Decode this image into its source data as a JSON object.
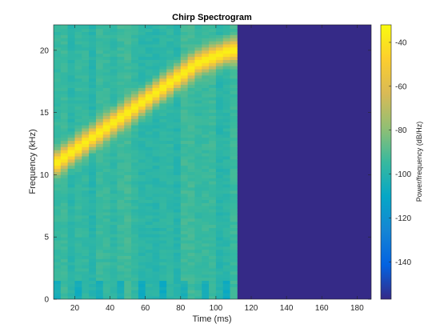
{
  "chart_data": {
    "type": "heatmap",
    "title": "Chirp Spectrogram",
    "xlabel": "Time (ms)",
    "ylabel": "Frequency (kHz)",
    "colorbar_label": "Power/frequency (dB/Hz)",
    "xlim": [
      8,
      188
    ],
    "ylim": [
      0,
      22.05
    ],
    "clim": [
      -157,
      -32
    ],
    "colormap": "parula",
    "x_ticks": [
      20,
      40,
      60,
      80,
      100,
      120,
      140,
      160,
      180
    ],
    "x_tick_labels": [
      "20",
      "40",
      "60",
      "80",
      "100",
      "120",
      "140",
      "160",
      "180"
    ],
    "y_ticks": [
      0,
      5,
      10,
      15,
      20
    ],
    "y_tick_labels": [
      "0",
      "5",
      "10",
      "15",
      "20"
    ],
    "colorbar_ticks": [
      -140,
      -120,
      -100,
      -80,
      -60,
      -40
    ],
    "colorbar_tick_labels": [
      "-140",
      "-120",
      "-100",
      "-80",
      "-60",
      "-40"
    ],
    "signal_end_ms": 112,
    "chirp_ridge": {
      "time_ms": [
        10,
        30,
        50,
        70,
        90,
        108
      ],
      "frequency_khz": [
        11.0,
        13.0,
        15.0,
        17.0,
        19.0,
        20.0
      ],
      "peak_db": -36
    },
    "background_db_range": [
      -108,
      -88
    ],
    "empty_region_db": -157
  }
}
